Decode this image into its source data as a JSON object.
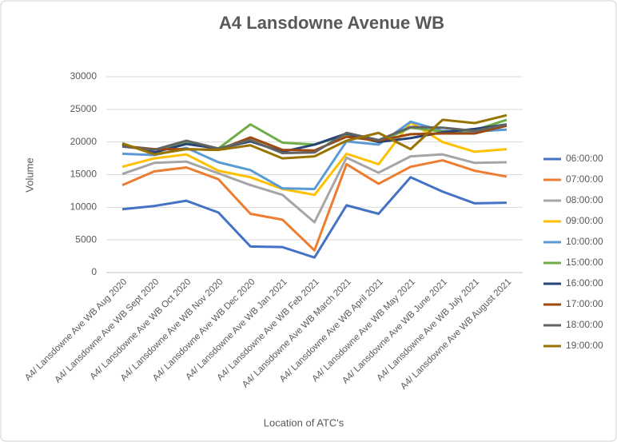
{
  "chart_data": {
    "type": "line",
    "title": "A4 Lansdowne Avenue WB",
    "x_label": "Location of ATC's",
    "y_label": "Volume",
    "categories": [
      "A4/ Lansdowne Ave WB Aug 2020",
      "A4/ Lansdowne Ave WB Sept 2020",
      "A4/ Lansdowne Ave WB Oct 2020",
      "A4/ Lansdowne Ave WB Nov 2020",
      "A4/ Lansdowne Ave WB Dec 2020",
      "A4/ Lansdowne Ave WB Jan 2021",
      "A4/ Lansdowne Ave WB Feb 2021",
      "A4/ Lansdowne Ave WB March 2021",
      "A4/ Lansdowne Ave WB April 2021",
      "A4/ Lansdowne Ave WB May 2021",
      "A4/ Lansdowne Ave WB June 2021",
      "A4/ Lansdowne Ave WB July 2021",
      "A4/ Lansdowne Ave WB August 2021"
    ],
    "series": [
      {
        "name": "06:00:00",
        "color": "#4472c4",
        "values": [
          9700,
          10200,
          11000,
          9200,
          4000,
          3900,
          2300,
          10300,
          9000,
          14600,
          12400,
          10600,
          10700
        ]
      },
      {
        "name": "07:00:00",
        "color": "#ed7d31",
        "values": [
          13400,
          15500,
          16100,
          14300,
          9000,
          8100,
          3400,
          16600,
          13600,
          16200,
          17200,
          15600,
          14700
        ]
      },
      {
        "name": "08:00:00",
        "color": "#a5a5a5",
        "values": [
          15100,
          16800,
          17000,
          15200,
          13400,
          11900,
          7700,
          17600,
          15300,
          17800,
          18100,
          16800,
          16900
        ]
      },
      {
        "name": "09:00:00",
        "color": "#ffc000",
        "values": [
          16200,
          17500,
          18100,
          15600,
          14600,
          12800,
          11900,
          18200,
          16600,
          23000,
          20000,
          18500,
          18900
        ]
      },
      {
        "name": "10:00:00",
        "color": "#5b9bd5",
        "values": [
          18200,
          18000,
          19100,
          16900,
          15700,
          12900,
          12800,
          20100,
          19600,
          23100,
          21700,
          21600,
          21900
        ]
      },
      {
        "name": "15:00:00",
        "color": "#70ad47",
        "values": [
          19700,
          18300,
          20000,
          19000,
          22700,
          19900,
          19600,
          21100,
          20000,
          22200,
          21600,
          21800,
          23400
        ]
      },
      {
        "name": "16:00:00",
        "color": "#264478",
        "values": [
          19600,
          18400,
          19700,
          19000,
          20100,
          18500,
          19600,
          21300,
          20000,
          20600,
          21500,
          22000,
          22700
        ]
      },
      {
        "name": "17:00:00",
        "color": "#9e480e",
        "values": [
          19400,
          18900,
          18900,
          18800,
          20700,
          18800,
          18700,
          20800,
          20200,
          21200,
          21300,
          21300,
          22500
        ]
      },
      {
        "name": "18:00:00",
        "color": "#636363",
        "values": [
          19300,
          18800,
          20200,
          19000,
          20300,
          18300,
          18400,
          21400,
          20300,
          22300,
          22200,
          21700,
          22700
        ]
      },
      {
        "name": "19:00:00",
        "color": "#997300",
        "values": [
          19800,
          18100,
          18900,
          18800,
          19500,
          17500,
          17800,
          20200,
          21400,
          18900,
          23400,
          22900,
          24100
        ]
      }
    ],
    "ylim": [
      0,
      30000
    ],
    "yticks": [
      0,
      5000,
      10000,
      15000,
      20000,
      25000,
      30000
    ],
    "grid": true,
    "legend": "right"
  }
}
